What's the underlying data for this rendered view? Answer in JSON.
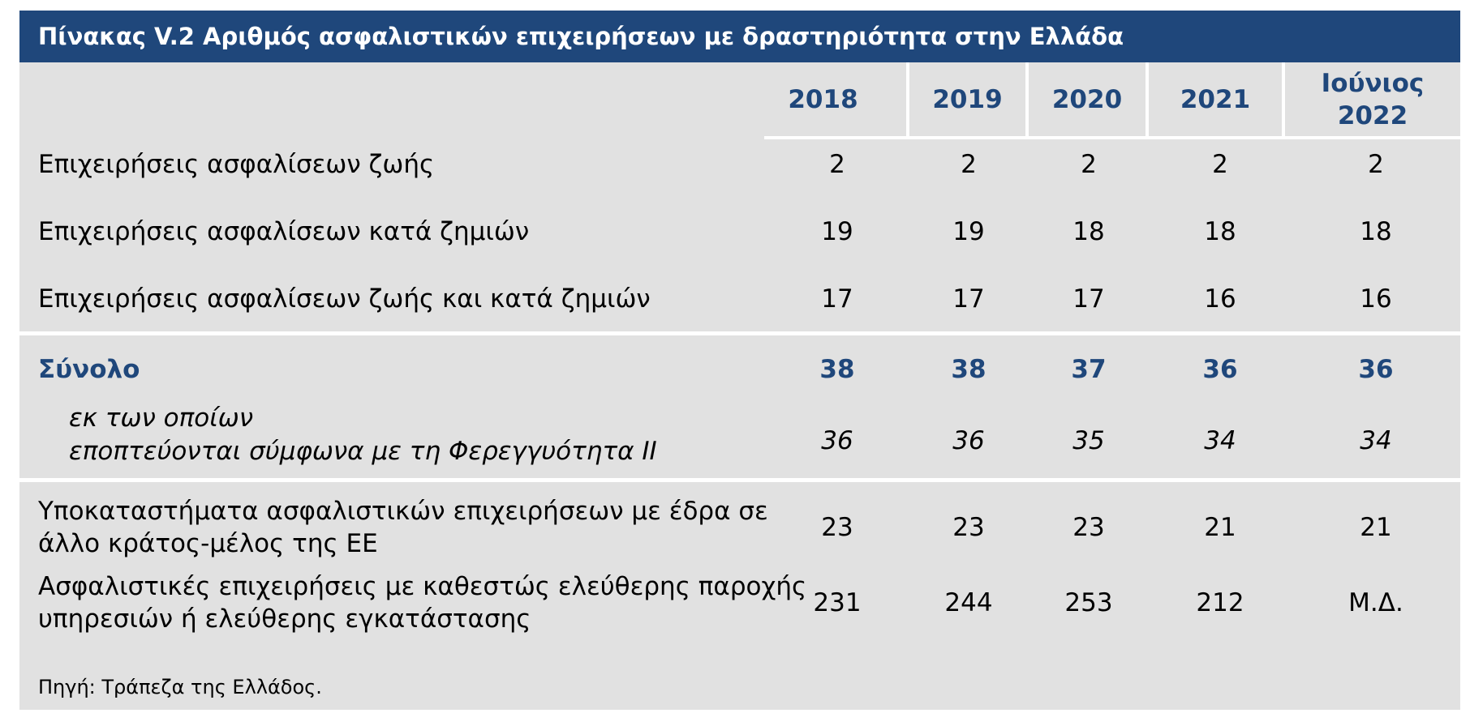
{
  "title": "Πίνακας V.2 Αριθμός ασφαλιστικών επιχειρήσεων με δραστηριότητα στην Ελλάδα",
  "columns": [
    "2018",
    "2019",
    "2020",
    "2021",
    "Ιούνιος 2022"
  ],
  "columns_split": {
    "last_line1": "Ιούνιος",
    "last_line2": "2022"
  },
  "rows": [
    {
      "label": "Επιχειρήσεις ασφαλίσεων ζωής",
      "values": [
        "2",
        "2",
        "2",
        "2",
        "2"
      ]
    },
    {
      "label": "Επιχειρήσεις ασφαλίσεων κατά ζημιών",
      "values": [
        "19",
        "19",
        "18",
        "18",
        "18"
      ]
    },
    {
      "label": "Επιχειρήσεις ασφαλίσεων ζωής και κατά ζημιών",
      "values": [
        "17",
        "17",
        "17",
        "16",
        "16"
      ]
    },
    {
      "label": "Σύνολο",
      "values": [
        "38",
        "38",
        "37",
        "36",
        "36"
      ]
    },
    {
      "label_line1": "εκ των οποίων",
      "label_line2": "εποπτεύονται σύμφωνα με τη Φερεγγυότητα ΙΙ",
      "values": [
        "36",
        "36",
        "35",
        "34",
        "34"
      ]
    },
    {
      "label_line1": "Υποκαταστήματα ασφαλιστικών επιχειρήσεων με έδρα σε",
      "label_line2": "άλλο κράτος-μέλος της ΕΕ",
      "values": [
        "23",
        "23",
        "23",
        "21",
        "21"
      ]
    },
    {
      "label_line1": "Ασφαλιστικές επιχειρήσεις με καθεστώς ελεύθερης παροχής",
      "label_line2": "υπηρεσιών ή ελεύθερης εγκατάστασης",
      "values": [
        "231",
        "244",
        "253",
        "212",
        "Μ.Δ."
      ]
    }
  ],
  "source": "Πηγή: Τράπεζα της Ελλάδος.",
  "colors": {
    "header_bg": "#1f477b",
    "table_bg": "#e1e1e1",
    "accent_text": "#1f477b"
  }
}
